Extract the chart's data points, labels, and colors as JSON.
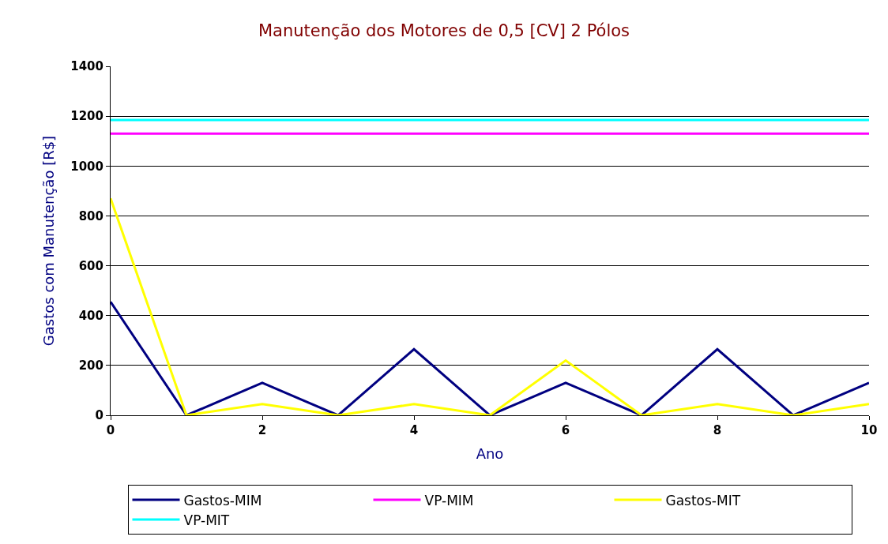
{
  "chart_data": {
    "type": "line",
    "title": "Manutenção dos Motores de 0,5 [CV] 2 Pólos",
    "xlabel": "Ano",
    "ylabel": "Gastos com Manutenção [R$]",
    "x": [
      0,
      1,
      2,
      3,
      4,
      5,
      6,
      7,
      8,
      9,
      10
    ],
    "series": [
      {
        "name": "Gastos-MIM",
        "color": "#000080",
        "values": [
          455,
          0,
          130,
          0,
          265,
          0,
          130,
          0,
          265,
          0,
          130
        ]
      },
      {
        "name": "VP-MIM",
        "color": "#ff00ff",
        "values": [
          1130,
          1130,
          1130,
          1130,
          1130,
          1130,
          1130,
          1130,
          1130,
          1130,
          1130
        ]
      },
      {
        "name": "Gastos-MIT",
        "color": "#ffff00",
        "values": [
          870,
          0,
          45,
          0,
          45,
          0,
          220,
          0,
          45,
          0,
          45
        ]
      },
      {
        "name": "VP-MIT",
        "color": "#00ffff",
        "values": [
          1185,
          1185,
          1185,
          1185,
          1185,
          1185,
          1185,
          1185,
          1185,
          1185,
          1185
        ]
      }
    ],
    "xlim": [
      0,
      10
    ],
    "xticks": [
      0,
      2,
      4,
      6,
      8,
      10
    ],
    "ylim": [
      0,
      1400
    ],
    "yticks": [
      0,
      200,
      400,
      600,
      800,
      1000,
      1200,
      1400
    ],
    "grid": "y",
    "legend": "bottom",
    "marker": "none",
    "line_style": "solid"
  }
}
